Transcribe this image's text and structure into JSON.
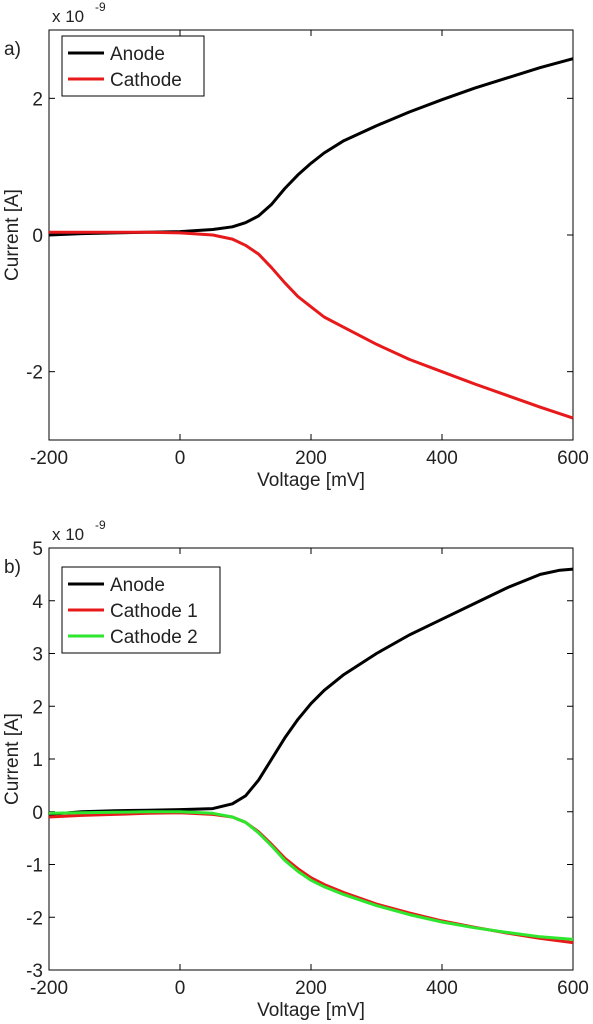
{
  "chart_data": [
    {
      "panel_label": "a)",
      "type": "line",
      "xlabel": "Voltage [mV]",
      "ylabel": "Current [A]",
      "y_multiplier": "x 10",
      "y_multiplier_exp": "-9",
      "xlim": [
        -200,
        600
      ],
      "ylim": [
        -3,
        3
      ],
      "xticks": [
        -200,
        0,
        200,
        400,
        600
      ],
      "yticks": [
        -2,
        0,
        2
      ],
      "legend": "top-left",
      "series": [
        {
          "name": "Anode",
          "color": "#000000",
          "x": [
            -200,
            -150,
            -100,
            -50,
            0,
            50,
            80,
            100,
            120,
            140,
            160,
            180,
            200,
            220,
            250,
            300,
            350,
            400,
            450,
            500,
            550,
            600
          ],
          "y": [
            0.0,
            0.02,
            0.03,
            0.04,
            0.05,
            0.08,
            0.12,
            0.18,
            0.28,
            0.45,
            0.68,
            0.88,
            1.05,
            1.2,
            1.38,
            1.6,
            1.8,
            1.98,
            2.15,
            2.3,
            2.45,
            2.58
          ]
        },
        {
          "name": "Cathode",
          "color": "#e8191a",
          "x": [
            -200,
            -150,
            -100,
            -50,
            0,
            50,
            80,
            100,
            120,
            140,
            160,
            180,
            200,
            220,
            250,
            300,
            350,
            400,
            450,
            500,
            550,
            600
          ],
          "y": [
            0.04,
            0.04,
            0.04,
            0.04,
            0.03,
            0.0,
            -0.06,
            -0.15,
            -0.28,
            -0.48,
            -0.7,
            -0.9,
            -1.05,
            -1.2,
            -1.35,
            -1.6,
            -1.82,
            -2.0,
            -2.18,
            -2.35,
            -2.52,
            -2.68
          ]
        }
      ]
    },
    {
      "panel_label": "b)",
      "type": "line",
      "xlabel": "Voltage [mV]",
      "ylabel": "Current [A]",
      "y_multiplier": "x 10",
      "y_multiplier_exp": "-9",
      "xlim": [
        -200,
        600
      ],
      "ylim": [
        -3,
        5
      ],
      "xticks": [
        -200,
        0,
        200,
        400,
        600
      ],
      "yticks": [
        -3,
        -2,
        -1,
        0,
        1,
        2,
        3,
        4,
        5
      ],
      "legend": "top-left",
      "series": [
        {
          "name": "Anode",
          "color": "#000000",
          "x": [
            -200,
            -150,
            -100,
            -50,
            0,
            50,
            80,
            100,
            120,
            140,
            160,
            180,
            200,
            220,
            250,
            300,
            350,
            400,
            450,
            500,
            550,
            580,
            600
          ],
          "y": [
            -0.05,
            0.0,
            0.02,
            0.03,
            0.04,
            0.06,
            0.15,
            0.3,
            0.6,
            1.0,
            1.4,
            1.75,
            2.05,
            2.3,
            2.6,
            3.0,
            3.35,
            3.65,
            3.95,
            4.25,
            4.5,
            4.58,
            4.6
          ]
        },
        {
          "name": "Cathode 1",
          "color": "#e8191a",
          "x": [
            -200,
            -150,
            -100,
            -50,
            0,
            50,
            80,
            100,
            120,
            140,
            160,
            180,
            200,
            220,
            250,
            300,
            350,
            400,
            450,
            500,
            550,
            600
          ],
          "y": [
            -0.1,
            -0.07,
            -0.05,
            -0.03,
            -0.02,
            -0.05,
            -0.1,
            -0.2,
            -0.38,
            -0.62,
            -0.88,
            -1.08,
            -1.25,
            -1.38,
            -1.53,
            -1.75,
            -1.92,
            -2.07,
            -2.19,
            -2.3,
            -2.4,
            -2.48
          ]
        },
        {
          "name": "Cathode 2",
          "color": "#2ee62e",
          "x": [
            -200,
            -150,
            -100,
            -50,
            0,
            50,
            80,
            100,
            120,
            140,
            160,
            180,
            200,
            220,
            250,
            300,
            350,
            400,
            450,
            500,
            550,
            600
          ],
          "y": [
            -0.03,
            -0.02,
            -0.01,
            0.0,
            0.0,
            -0.03,
            -0.1,
            -0.2,
            -0.4,
            -0.65,
            -0.92,
            -1.13,
            -1.3,
            -1.42,
            -1.57,
            -1.78,
            -1.95,
            -2.09,
            -2.2,
            -2.29,
            -2.37,
            -2.42
          ]
        }
      ]
    }
  ]
}
